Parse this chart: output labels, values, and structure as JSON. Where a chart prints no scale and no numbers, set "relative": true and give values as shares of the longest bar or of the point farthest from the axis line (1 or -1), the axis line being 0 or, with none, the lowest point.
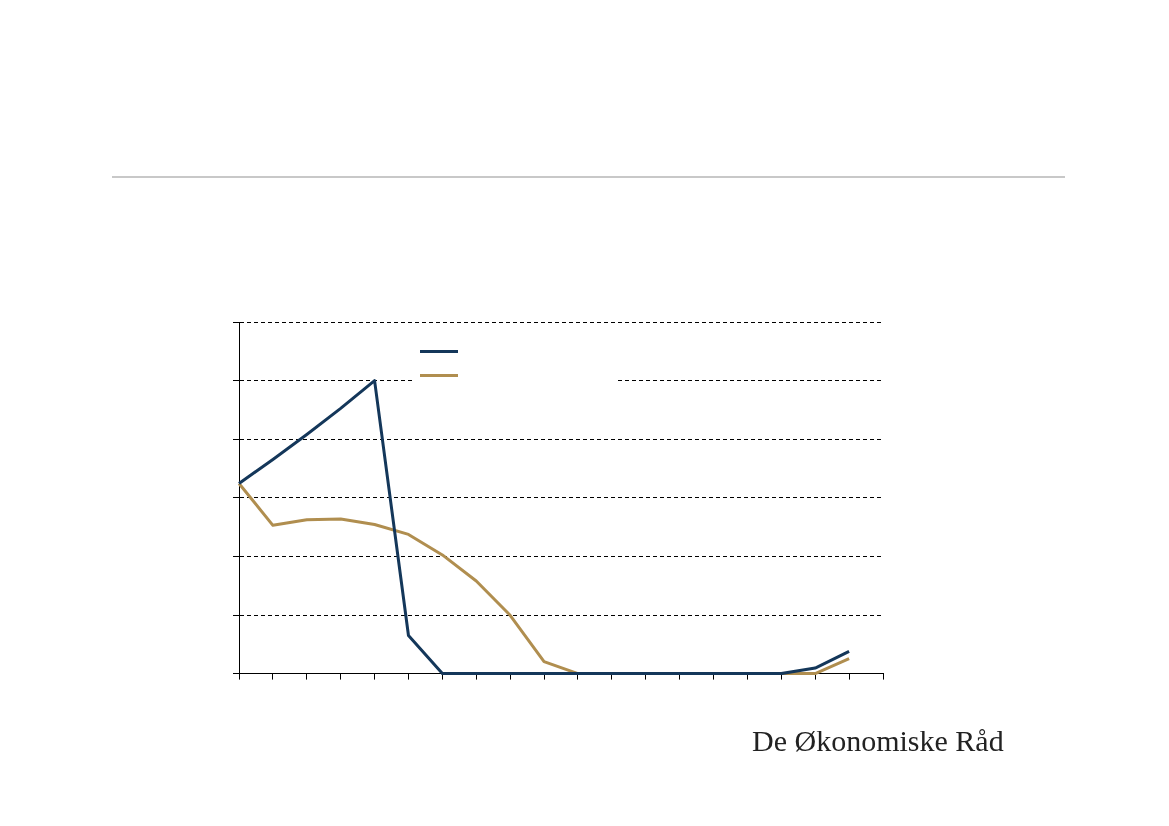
{
  "chart_data": {
    "type": "line",
    "relative": true,
    "categories": [
      null,
      null,
      null,
      null,
      null,
      null,
      null,
      null,
      null,
      null,
      null,
      null,
      null,
      null,
      null,
      null,
      null,
      null,
      null,
      null
    ],
    "series": [
      {
        "color": "#14375a",
        "values": [
          0.649,
          0.731,
          0.816,
          0.905,
          1,
          0.13,
          0,
          0,
          0,
          0,
          0,
          0,
          0,
          0,
          0,
          0,
          0,
          0.019,
          0.076,
          null
        ]
      },
      {
        "color": "#b08e4f",
        "values": [
          0.649,
          0.506,
          0.525,
          0.528,
          0.509,
          0.475,
          0.405,
          0.316,
          0.199,
          0.041,
          0,
          0,
          0,
          0,
          0,
          0,
          0,
          0,
          0.051,
          null
        ]
      }
    ],
    "grid": "y",
    "marker": "none",
    "line_style": "solid",
    "annotations": [
      "De Økonomiske Råd"
    ]
  }
}
